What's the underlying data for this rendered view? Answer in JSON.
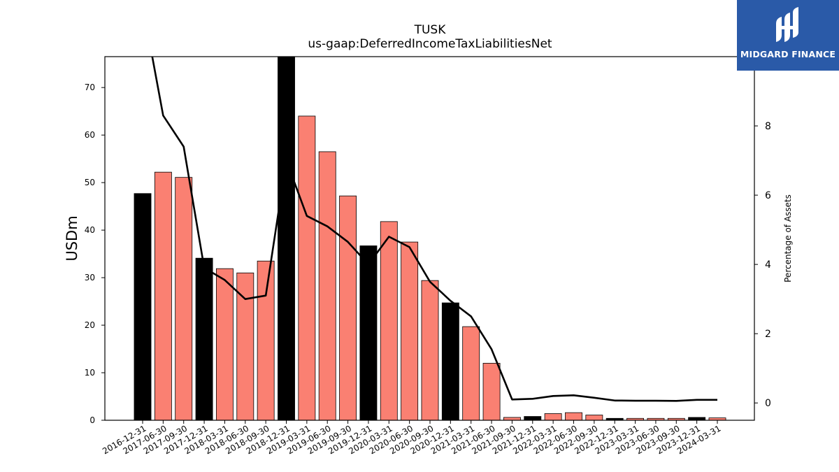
{
  "logo": {
    "text": "MIDGARD FINANCE",
    "bg_color": "#2a5aa8"
  },
  "chart_data": {
    "type": "bar",
    "title": "TUSK",
    "subtitle": "us-gaap:DeferredIncomeTaxLiabilitiesNet",
    "ylabel": "USDm",
    "ylabel_right": "Percentage of Assets",
    "ylim": [
      0,
      76.5
    ],
    "ylim_right": [
      -0.5,
      10
    ],
    "yticks": [
      0,
      10,
      20,
      30,
      40,
      50,
      60,
      70
    ],
    "yticks_right": [
      0,
      2,
      4,
      6,
      8
    ],
    "grid": false,
    "categories": [
      "2016-12-31",
      "2017-06-30",
      "2017-09-30",
      "2017-12-31",
      "2018-03-31",
      "2018-06-30",
      "2018-09-30",
      "2018-12-31",
      "2019-03-31",
      "2019-06-30",
      "2019-09-30",
      "2019-12-31",
      "2020-03-31",
      "2020-06-30",
      "2020-09-30",
      "2020-12-31",
      "2021-03-31",
      "2021-06-30",
      "2021-09-30",
      "2021-12-31",
      "2022-03-31",
      "2022-06-30",
      "2022-09-30",
      "2022-12-31",
      "2023-03-31",
      "2023-06-30",
      "2023-09-30",
      "2023-12-31",
      "2024-03-31"
    ],
    "series": [
      {
        "kind": "bar",
        "values": [
          47.7,
          52.2,
          51.1,
          34.1,
          31.9,
          31.0,
          33.5,
          77.0,
          64.0,
          56.5,
          47.2,
          36.7,
          41.8,
          37.5,
          29.4,
          24.7,
          19.7,
          12.0,
          0.6,
          0.8,
          1.4,
          1.6,
          1.1,
          0.4,
          0.4,
          0.4,
          0.4,
          0.6,
          0.5
        ],
        "colors": [
          "#000000",
          "#fa8072",
          "#fa8072",
          "#000000",
          "#fa8072",
          "#fa8072",
          "#fa8072",
          "#000000",
          "#fa8072",
          "#fa8072",
          "#fa8072",
          "#000000",
          "#fa8072",
          "#fa8072",
          "#fa8072",
          "#000000",
          "#fa8072",
          "#fa8072",
          "#fa8072",
          "#000000",
          "#fa8072",
          "#fa8072",
          "#fa8072",
          "#000000",
          "#fa8072",
          "#fa8072",
          "#fa8072",
          "#000000",
          "#fa8072"
        ]
      },
      {
        "kind": "line",
        "axis": "right",
        "color": "#000000",
        "values": [
          11.5,
          8.3,
          7.4,
          3.9,
          3.55,
          3.0,
          3.1,
          7.0,
          5.4,
          5.1,
          4.65,
          4.0,
          4.8,
          4.5,
          3.5,
          2.95,
          2.5,
          1.55,
          0.1,
          0.12,
          0.2,
          0.22,
          0.15,
          0.07,
          0.065,
          0.065,
          0.06,
          0.09,
          0.09
        ]
      }
    ]
  }
}
